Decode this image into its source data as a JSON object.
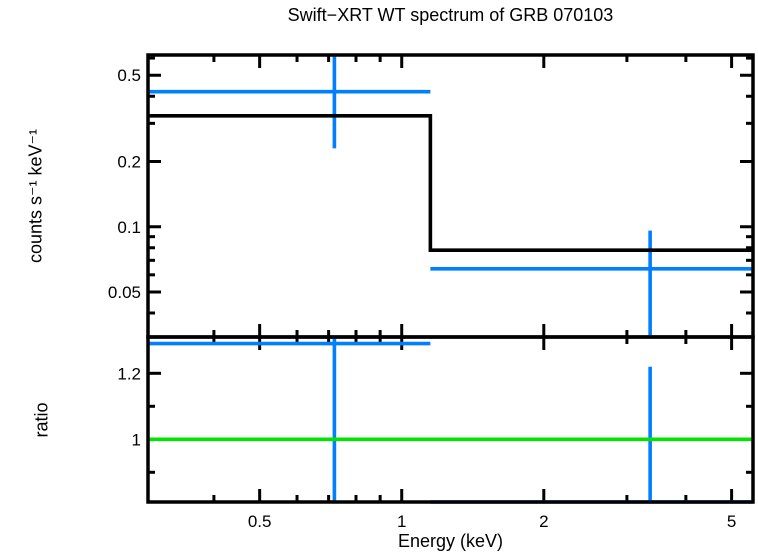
{
  "chart_data": {
    "type": "line",
    "subtype": "xray-spectrum-with-ratio",
    "title": "Swift−XRT WT spectrum of GRB 070103",
    "xlabel": "Energy (keV)",
    "x_scale": "log",
    "x_range": [
      0.29,
      5.55
    ],
    "x_major_ticks": [
      {
        "value": 0.5,
        "label": "0.5"
      },
      {
        "value": 1,
        "label": "1"
      },
      {
        "value": 2,
        "label": "2"
      },
      {
        "value": 5,
        "label": "5"
      }
    ],
    "x_minor_ticks": [
      0.4,
      0.6,
      0.7,
      0.8,
      0.9,
      3,
      4
    ],
    "colors": {
      "data": "#0080ff",
      "model": "#000000",
      "reference": "#00e400",
      "frame": "#000000"
    },
    "panels": [
      {
        "name": "spectrum",
        "ylabel": "counts s⁻¹ keV⁻¹",
        "y_scale": "log",
        "y_range": [
          0.031,
          0.62
        ],
        "y_major_ticks": [
          {
            "value": 0.5,
            "label": "0.5"
          },
          {
            "value": 0.2,
            "label": "0.2"
          },
          {
            "value": 0.1,
            "label": "0.1"
          },
          {
            "value": 0.05,
            "label": "0.05"
          }
        ],
        "y_minor_ticks": [
          0.6,
          0.4,
          0.3,
          0.09,
          0.08,
          0.07,
          0.06,
          0.04
        ],
        "model_steps": [
          {
            "x_start": 0.29,
            "x_end": 1.15,
            "value": 0.325
          },
          {
            "x_start": 1.15,
            "x_end": 5.55,
            "value": 0.078
          }
        ],
        "data": [
          {
            "x": 0.72,
            "x_low": 0.29,
            "x_high": 1.15,
            "y": 0.42,
            "err_low": 0.23,
            "err_high": null,
            "err_high_clipped": true
          },
          {
            "x": 3.36,
            "x_low": 1.15,
            "x_high": 5.55,
            "y": 0.064,
            "err_low": null,
            "err_low_clipped": true,
            "err_high": 0.096
          }
        ]
      },
      {
        "name": "ratio",
        "ylabel": "ratio",
        "y_scale": "linear",
        "y_range": [
          0.81,
          1.31
        ],
        "y_major_ticks": [
          {
            "value": 1.2,
            "label": "1.2"
          },
          {
            "value": 1,
            "label": "1"
          }
        ],
        "y_minor_ticks": [
          1.1,
          0.9
        ],
        "reference_line": {
          "y": 1
        },
        "data": [
          {
            "x": 0.72,
            "x_low": 0.29,
            "x_high": 1.15,
            "y": 1.29,
            "err_low": null,
            "err_low_clipped": true,
            "err_high": null,
            "err_high_clipped": true
          },
          {
            "x": 3.36,
            "x_low": 1.15,
            "x_high": 5.55,
            "y": 0.8,
            "err_low": null,
            "err_low_clipped": true,
            "err_high": 1.22
          }
        ]
      }
    ]
  }
}
